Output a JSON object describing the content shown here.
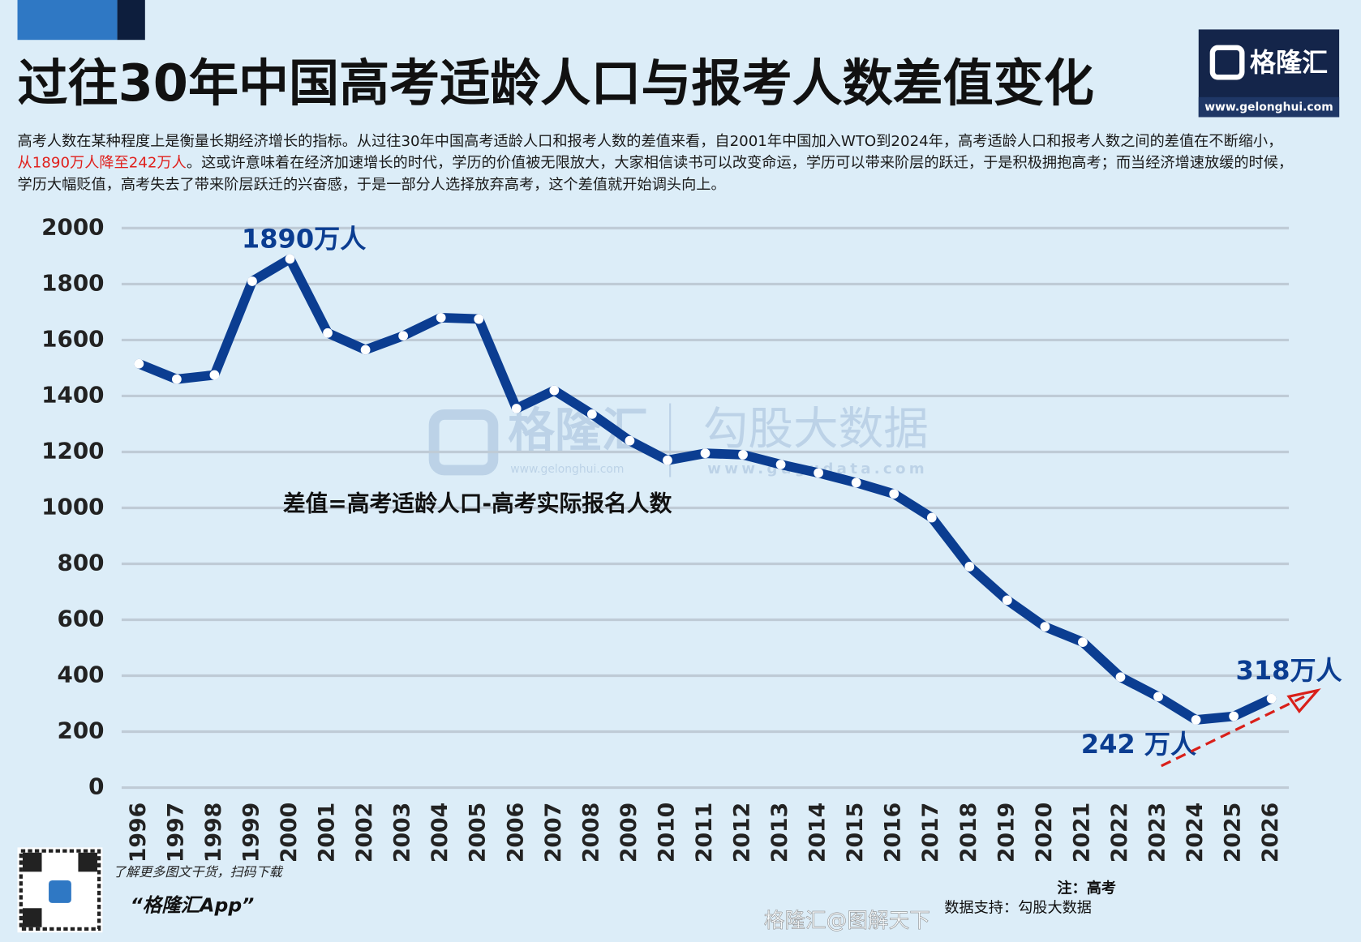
{
  "header": {
    "title": "过往30年中国高考适龄人口与报考人数差值变化",
    "description": {
      "before": "高考人数在某种程度上是衡量长期经济增长的指标。从过往30年中国高考适龄人口和报考人数的差值来看，自2001年中国加入WTO到2024年，高考适龄人口和报考人数之间的差值在不断缩小，",
      "highlight": "从1890万人降至242万人",
      "after": "。这或许意味着在经济加速增长的时代，学历的价值被无限放大，大家相信读书可以改变命运，学历可以带来阶层的跃迁，于是积极拥抱高考；而当经济增速放缓的时候，学历大幅贬值，高考失去了带来阶层跃迁的兴奋感，于是一部分人选择放弃高考，这个差值就开始调头向上。"
    }
  },
  "logo": {
    "name": "格隆汇",
    "url": "www.gelonghui.com"
  },
  "watermarks": {
    "left_name": "格隆汇",
    "left_url": "www.gelonghui.com",
    "right_name": "勾股大数据",
    "right_url": "www.gugudata.com"
  },
  "footer": {
    "qr_caption": "了解更多图文干货，扫码下载",
    "app_name": "“格隆汇App”",
    "note": "注：高考",
    "source": "数据支持：勾股大数据",
    "weibo": "格隆汇@图解天下"
  },
  "chart_data": {
    "type": "line",
    "categories": [
      "1996",
      "1997",
      "1998",
      "1999",
      "2000",
      "2001",
      "2002",
      "2003",
      "2004",
      "2005",
      "2006",
      "2007",
      "2008",
      "2009",
      "2010",
      "2011",
      "2012",
      "2013",
      "2014",
      "2015",
      "2016",
      "2017",
      "2018",
      "2019",
      "2020",
      "2021",
      "2022",
      "2023",
      "2024",
      "2025",
      "2026"
    ],
    "values": [
      1515,
      1460,
      1475,
      1810,
      1890,
      1625,
      1565,
      1615,
      1680,
      1675,
      1355,
      1420,
      1335,
      1240,
      1170,
      1195,
      1190,
      1155,
      1125,
      1090,
      1050,
      965,
      790,
      670,
      575,
      520,
      395,
      325,
      242,
      255,
      318
    ],
    "color": "#0b3d91",
    "ylim": [
      0,
      2000
    ],
    "yticks": [
      0,
      200,
      400,
      600,
      800,
      1000,
      1200,
      1400,
      1600,
      1800,
      2000
    ],
    "grid": true,
    "annotations": [
      "1890万人",
      "318万人",
      "242 万人",
      "差值=高考适龄人口-高考实际报名人数"
    ]
  }
}
